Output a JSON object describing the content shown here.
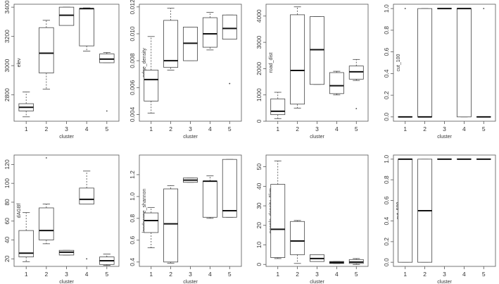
{
  "chart_data": [
    {
      "type": "boxplot",
      "ylabel": "elev",
      "xlabel": "cluster",
      "categories": [
        "1",
        "2",
        "3",
        "4",
        "5"
      ],
      "ylim": [
        2620,
        3420
      ],
      "yticks": [
        2800,
        3000,
        3200,
        3400
      ],
      "ytick_labels": [
        "2800",
        "3000",
        "3200",
        "3400"
      ],
      "boxes": [
        {
          "whisker_low": 2650,
          "q1": 2690,
          "median": 2715,
          "q3": 2740,
          "whisker_high": 2820,
          "outliers": []
        },
        {
          "whisker_low": 2840,
          "q1": 2950,
          "median": 3085,
          "q3": 3260,
          "whisker_high": 3310,
          "outliers": []
        },
        {
          "whisker_low": 3275,
          "q1": 3275,
          "median": 3345,
          "q3": 3400,
          "whisker_high": 3400,
          "outliers": []
        },
        {
          "whisker_low": 3100,
          "q1": 3135,
          "median": 3390,
          "q3": 3390,
          "whisker_high": 3395,
          "outliers": []
        },
        {
          "whisker_low": 3020,
          "q1": 3020,
          "median": 3045,
          "q3": 3080,
          "whisker_high": 3090,
          "outliers": [
            2690
          ]
        }
      ]
    },
    {
      "type": "boxplot",
      "ylabel": "edge_density",
      "xlabel": "cluster",
      "categories": [
        "1",
        "2",
        "3",
        "4",
        "5"
      ],
      "ylim": [
        0.0035,
        0.0122
      ],
      "yticks": [
        0.004,
        0.006,
        0.008,
        0.01,
        0.012
      ],
      "ytick_labels": [
        "0.004",
        "0.006",
        "0.008",
        "0.010",
        "0.012"
      ],
      "boxes": [
        {
          "whisker_low": 0.0041,
          "q1": 0.005,
          "median": 0.0066,
          "q3": 0.0073,
          "whisker_high": 0.0098,
          "outliers": []
        },
        {
          "whisker_low": 0.0073,
          "q1": 0.0075,
          "median": 0.008,
          "q3": 0.011,
          "whisker_high": 0.0119,
          "outliers": []
        },
        {
          "whisker_low": 0.008,
          "q1": 0.008,
          "median": 0.0093,
          "q3": 0.0105,
          "whisker_high": 0.0105,
          "outliers": []
        },
        {
          "whisker_low": 0.0088,
          "q1": 0.009,
          "median": 0.01,
          "q3": 0.0112,
          "whisker_high": 0.0116,
          "outliers": []
        },
        {
          "whisker_low": 0.0096,
          "q1": 0.0096,
          "median": 0.0104,
          "q3": 0.0114,
          "whisker_high": 0.0114,
          "outliers": [
            0.0063
          ]
        }
      ]
    },
    {
      "type": "boxplot",
      "ylabel": "road_dist",
      "xlabel": "cluster",
      "categories": [
        "1",
        "2",
        "3",
        "4",
        "5"
      ],
      "ylim": [
        0,
        4450
      ],
      "yticks": [
        0,
        1000,
        2000,
        3000,
        4000
      ],
      "ytick_labels": [
        "0",
        "1000",
        "2000",
        "3000",
        "4000"
      ],
      "boxes": [
        {
          "whisker_low": 100,
          "q1": 250,
          "median": 380,
          "q3": 850,
          "whisker_high": 1100,
          "outliers": []
        },
        {
          "whisker_low": 500,
          "q1": 650,
          "median": 1930,
          "q3": 4050,
          "whisker_high": 4350,
          "outliers": []
        },
        {
          "whisker_low": 1400,
          "q1": 1400,
          "median": 2720,
          "q3": 3980,
          "whisker_high": 3980,
          "outliers": []
        },
        {
          "whisker_low": 1000,
          "q1": 1050,
          "median": 1350,
          "q3": 1850,
          "whisker_high": 1900,
          "outliers": []
        },
        {
          "whisker_low": 1550,
          "q1": 1600,
          "median": 1880,
          "q3": 2100,
          "whisker_high": 2350,
          "outliers": [
            480
          ]
        }
      ]
    },
    {
      "type": "boxplot",
      "ylabel": "cut_100",
      "xlabel": "cluster",
      "categories": [
        "1",
        "2",
        "3",
        "4",
        "5"
      ],
      "ylim": [
        -0.04,
        1.04
      ],
      "yticks": [
        0,
        0.2,
        0.4,
        0.6,
        0.8,
        1.0
      ],
      "ytick_labels": [
        "0.0",
        "0.2",
        "0.4",
        "0.6",
        "0.8",
        "1.0"
      ],
      "boxes": [
        {
          "whisker_low": 0,
          "q1": 0,
          "median": 0,
          "q3": 0,
          "whisker_high": 0,
          "outliers": [
            1.0
          ]
        },
        {
          "whisker_low": 0,
          "q1": 0,
          "median": 0,
          "q3": 1.0,
          "whisker_high": 1.0,
          "outliers": []
        },
        {
          "whisker_low": 1.0,
          "q1": 1.0,
          "median": 1.0,
          "q3": 1.0,
          "whisker_high": 1.0,
          "outliers": []
        },
        {
          "whisker_low": 0,
          "q1": 0,
          "median": 1.0,
          "q3": 1.0,
          "whisker_high": 1.0,
          "outliers": []
        },
        {
          "whisker_low": 0,
          "q1": 0,
          "median": 0,
          "q3": 0,
          "whisker_high": 0,
          "outliers": [
            1.0
          ]
        }
      ]
    },
    {
      "type": "boxplot",
      "ylabel": "dAGBf",
      "xlabel": "cluster",
      "categories": [
        "1",
        "2",
        "3",
        "4",
        "5"
      ],
      "ylim": [
        12,
        130
      ],
      "yticks": [
        20,
        40,
        60,
        80,
        100,
        120
      ],
      "ytick_labels": [
        "20",
        "40",
        "60",
        "80",
        "100",
        "120"
      ],
      "boxes": [
        {
          "whisker_low": 17,
          "q1": 22,
          "median": 26,
          "q3": 50,
          "whisker_high": 69,
          "outliers": []
        },
        {
          "whisker_low": 36,
          "q1": 40,
          "median": 50,
          "q3": 74,
          "whisker_high": 78,
          "outliers": [
            127
          ]
        },
        {
          "whisker_low": 24,
          "q1": 24,
          "median": 27,
          "q3": 29,
          "whisker_high": 29,
          "outliers": []
        },
        {
          "whisker_low": 78,
          "q1": 78,
          "median": 83,
          "q3": 95,
          "whisker_high": 113,
          "outliers": [
            20
          ]
        },
        {
          "whisker_low": 13,
          "q1": 14,
          "median": 18,
          "q3": 22,
          "whisker_high": 25,
          "outliers": []
        }
      ]
    },
    {
      "type": "boxplot",
      "ylabel": "landscape_shannon",
      "xlabel": "cluster",
      "categories": [
        "1",
        "2",
        "3",
        "4",
        "5"
      ],
      "ylim": [
        0.36,
        1.38
      ],
      "yticks": [
        0.4,
        0.6,
        0.8,
        1.0,
        1.2
      ],
      "ytick_labels": [
        "0.4",
        "0.6",
        "0.8",
        "1.0",
        "1.2"
      ],
      "boxes": [
        {
          "whisker_low": 0.53,
          "q1": 0.67,
          "median": 0.78,
          "q3": 0.85,
          "whisker_high": 0.9,
          "outliers": []
        },
        {
          "whisker_low": 0.39,
          "q1": 0.4,
          "median": 0.75,
          "q3": 1.07,
          "whisker_high": 1.1,
          "outliers": []
        },
        {
          "whisker_low": 1.13,
          "q1": 1.13,
          "median": 1.15,
          "q3": 1.17,
          "whisker_high": 1.17,
          "outliers": []
        },
        {
          "whisker_low": 0.8,
          "q1": 0.81,
          "median": 1.14,
          "q3": 1.14,
          "whisker_high": 1.19,
          "outliers": []
        },
        {
          "whisker_low": 0.81,
          "q1": 0.81,
          "median": 0.87,
          "q3": 1.34,
          "whisker_high": 1.34,
          "outliers": []
        }
      ]
    },
    {
      "type": "boxplot",
      "ylabel": "people_density_5km",
      "xlabel": "cluster",
      "categories": [
        "1",
        "2",
        "3",
        "4",
        "5"
      ],
      "ylim": [
        -1,
        56
      ],
      "yticks": [
        0,
        10,
        20,
        30,
        40,
        50
      ],
      "ytick_labels": [
        "0",
        "10",
        "20",
        "30",
        "40",
        "50"
      ],
      "boxes": [
        {
          "whisker_low": 3,
          "q1": 3.5,
          "median": 18,
          "q3": 41,
          "whisker_high": 53,
          "outliers": []
        },
        {
          "whisker_low": 0.5,
          "q1": 5,
          "median": 12,
          "q3": 22,
          "whisker_high": 22.5,
          "outliers": []
        },
        {
          "whisker_low": 1.5,
          "q1": 1.5,
          "median": 3,
          "q3": 5,
          "whisker_high": 5,
          "outliers": []
        },
        {
          "whisker_low": 0.5,
          "q1": 0.5,
          "median": 1,
          "q3": 1.5,
          "whisker_high": 1.5,
          "outliers": []
        },
        {
          "whisker_low": 0,
          "q1": 0.5,
          "median": 1.2,
          "q3": 2.5,
          "whisker_high": 3,
          "outliers": []
        }
      ]
    },
    {
      "type": "boxplot",
      "ylabel": "cut_500",
      "xlabel": "cluster",
      "categories": [
        "1",
        "2",
        "3",
        "4",
        "5"
      ],
      "ylim": [
        -0.04,
        1.04
      ],
      "yticks": [
        0,
        0.2,
        0.4,
        0.6,
        0.8,
        1.0
      ],
      "ytick_labels": [
        "0.0",
        "0.2",
        "0.4",
        "0.6",
        "0.8",
        "1.0"
      ],
      "boxes": [
        {
          "whisker_low": 0,
          "q1": 0,
          "median": 1.0,
          "q3": 1.0,
          "whisker_high": 1.0,
          "outliers": []
        },
        {
          "whisker_low": 0,
          "q1": 0,
          "median": 0.5,
          "q3": 1.0,
          "whisker_high": 1.0,
          "outliers": []
        },
        {
          "whisker_low": 1.0,
          "q1": 1.0,
          "median": 1.0,
          "q3": 1.0,
          "whisker_high": 1.0,
          "outliers": []
        },
        {
          "whisker_low": 1.0,
          "q1": 1.0,
          "median": 1.0,
          "q3": 1.0,
          "whisker_high": 1.0,
          "outliers": []
        },
        {
          "whisker_low": 1.0,
          "q1": 1.0,
          "median": 1.0,
          "q3": 1.0,
          "whisker_high": 1.0,
          "outliers": []
        }
      ]
    }
  ]
}
